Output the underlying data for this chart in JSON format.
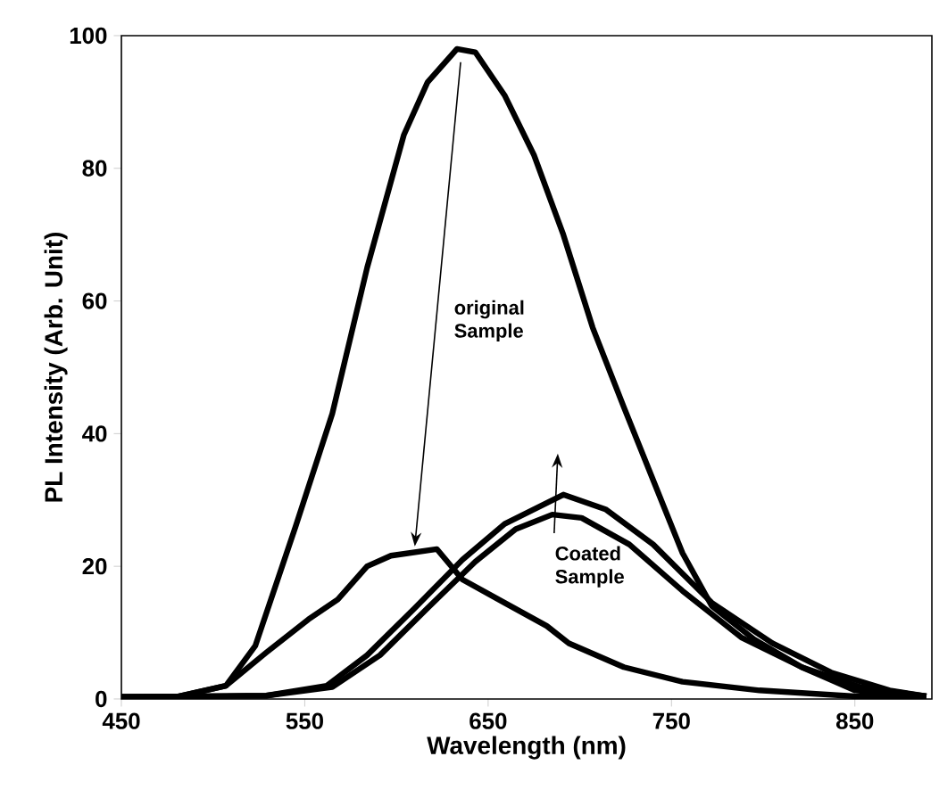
{
  "chart_data": {
    "type": "line",
    "xlabel": "Wavelength (nm)",
    "ylabel": "PL Intensity (Arb. Unit)",
    "xlim": [
      450,
      892
    ],
    "ylim": [
      0,
      100
    ],
    "xticks": [
      450,
      550,
      650,
      750,
      850
    ],
    "yticks": [
      0,
      20,
      40,
      60,
      80,
      100
    ],
    "grid": false,
    "marker": "none",
    "line_style": "solid",
    "annotations": [
      "original Sample",
      "Coated Sample"
    ],
    "series": [
      {
        "color": "#000000",
        "x": [
          450,
          480,
          507,
          523,
          545,
          565,
          584,
          604,
          617,
          633,
          643,
          659,
          675,
          691,
          707,
          724,
          740,
          756,
          772,
          795,
          821,
          850,
          889
        ],
        "values": [
          0.3,
          0.3,
          2,
          8,
          26,
          43,
          65,
          85,
          93,
          98,
          97.5,
          91,
          82,
          70,
          56,
          44,
          33,
          22,
          14,
          9,
          4.8,
          1.3,
          0.4
        ]
      },
      {
        "color": "#000000",
        "x": [
          450,
          480,
          507,
          529,
          552,
          568,
          584,
          597,
          622,
          636,
          659,
          682,
          694,
          724,
          756,
          798,
          850,
          889
        ],
        "values": [
          0.3,
          0.3,
          2,
          7,
          12,
          15,
          20,
          21.6,
          22.6,
          18,
          14.5,
          11,
          8.4,
          4.8,
          2.6,
          1.3,
          0.4,
          0.3
        ]
      },
      {
        "color": "#000000",
        "x": [
          450,
          529,
          562,
          584,
          610,
          636,
          659,
          691,
          714,
          740,
          772,
          805,
          837,
          869,
          889
        ],
        "values": [
          0.3,
          0.5,
          2,
          6.6,
          13.7,
          21,
          26.4,
          30.8,
          28.6,
          23.3,
          14.5,
          8.4,
          4,
          1.3,
          0.4
        ]
      },
      {
        "color": "#000000",
        "x": [
          450,
          529,
          565,
          591,
          617,
          643,
          665,
          685,
          701,
          727,
          756,
          788,
          821,
          853,
          889
        ],
        "values": [
          0.3,
          0.5,
          1.8,
          6.6,
          13.7,
          20.7,
          25.6,
          27.8,
          27.3,
          23.3,
          16.3,
          9.3,
          4.8,
          1.8,
          0.4
        ]
      }
    ]
  }
}
